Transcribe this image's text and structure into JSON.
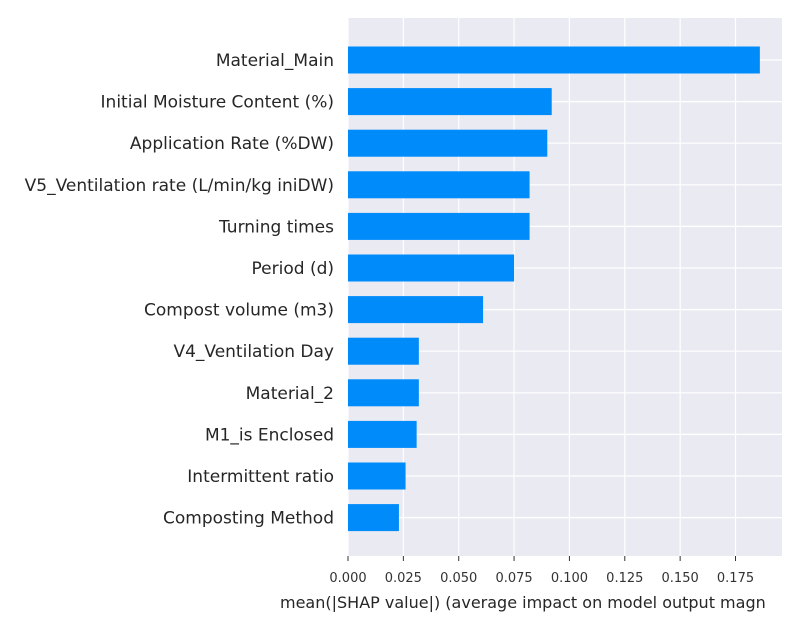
{
  "chart_data": {
    "type": "bar",
    "orientation": "horizontal",
    "categories": [
      "Material_Main",
      "Initial Moisture Content (%)",
      "Application Rate (%DW)",
      "V5_Ventilation rate (L/min/kg iniDW)",
      "Turning times",
      "Period (d)",
      "Compost volume (m3)",
      "V4_Ventilation Day",
      "Material_2",
      "M1_is Enclosed",
      "Intermittent ratio",
      "Composting Method"
    ],
    "values": [
      0.186,
      0.092,
      0.09,
      0.082,
      0.082,
      0.075,
      0.061,
      0.032,
      0.032,
      0.031,
      0.026,
      0.023
    ],
    "xlabel": "mean(|SHAP value|) (average impact on model output magn",
    "ylabel": "",
    "xlim": [
      0,
      0.196
    ],
    "xticks": [
      "0.000",
      "0.025",
      "0.050",
      "0.075",
      "0.100",
      "0.125",
      "0.150",
      "0.175"
    ],
    "grid": true,
    "bar_color": "#008bfb",
    "plot_background": "#eaeaf2",
    "grid_color": "#ffffff"
  }
}
